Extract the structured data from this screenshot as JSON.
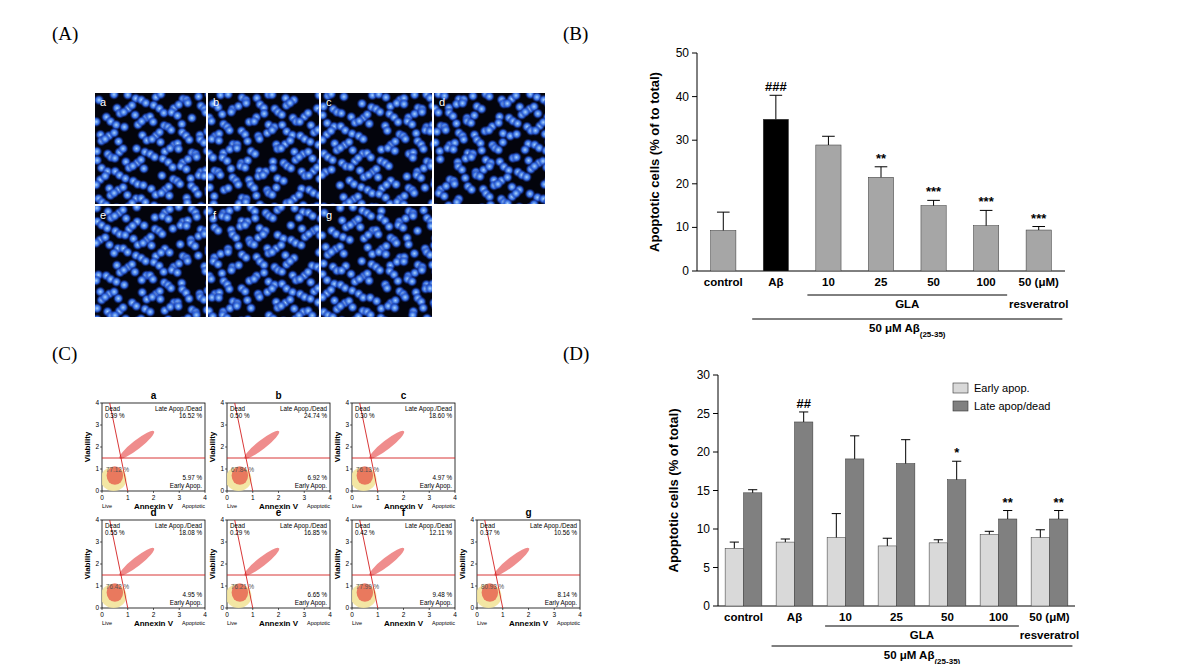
{
  "panel_labels": [
    "(A)",
    "(B)",
    "(C)",
    "(D)"
  ],
  "images": {
    "labels": [
      "a",
      "b",
      "c",
      "d",
      "e",
      "f",
      "g"
    ]
  },
  "flow_plots": {
    "x_label": "Annexin V",
    "y_label": "Viability",
    "xlim": [
      0,
      4
    ],
    "ylim": [
      0,
      4
    ],
    "xticks": [
      0,
      1,
      2,
      3,
      4
    ],
    "yticks": [
      0,
      1,
      2,
      3,
      4
    ],
    "gate_y": 1.5,
    "gate_x": [
      0.3,
      1.0
    ],
    "quadrant_names": {
      "dead": "Dead",
      "late": "Late Apop./Dead",
      "early": "Early Apop."
    },
    "bottom_labels": [
      "Live",
      "Apoptotic"
    ],
    "plots": [
      {
        "label": "a",
        "dead": "0.39 %",
        "late": "16.52 %",
        "early": "5.97 %",
        "live": "77.12 %"
      },
      {
        "label": "b",
        "dead": "0.50 %",
        "late": "24.74 %",
        "early": "6.92 %",
        "live": "67.84 %"
      },
      {
        "label": "c",
        "dead": "0.30 %",
        "late": "18.60 %",
        "early": "4.97 %",
        "live": "76.13 %"
      },
      {
        "label": "d",
        "dead": "0.55 %",
        "late": "18.08 %",
        "early": "4.95 %",
        "live": "76.42 %"
      },
      {
        "label": "e",
        "dead": "0.29 %",
        "late": "16.85 %",
        "early": "6.65 %",
        "live": "76.21 %"
      },
      {
        "label": "f",
        "dead": "0.42 %",
        "late": "12.11 %",
        "early": "9.48 %",
        "live": "77.99 %"
      },
      {
        "label": "g",
        "dead": "0.37 %",
        "late": "10.56 %",
        "early": "8.14 %",
        "live": "80.93 %"
      }
    ]
  },
  "chart_data": [
    {
      "type": "bar",
      "categories": [
        "control",
        "Aβ",
        "10",
        "25",
        "50",
        "100",
        "50 (μM)"
      ],
      "values": [
        9.3,
        34.8,
        28.9,
        21.5,
        15.0,
        10.4,
        9.4
      ],
      "errors": [
        4.2,
        5.5,
        2.0,
        2.4,
        1.2,
        3.5,
        0.8
      ],
      "colors": [
        "#a6a6a6",
        "#000000",
        "#a6a6a6",
        "#a6a6a6",
        "#a6a6a6",
        "#a6a6a6",
        "#a6a6a6"
      ],
      "annotations": [
        null,
        "###",
        null,
        "**",
        "***",
        "***",
        "***"
      ],
      "y_label": "Apoptotic cells (% of to total)",
      "ylim": [
        0,
        50
      ],
      "yticks": [
        0,
        10,
        20,
        30,
        40,
        50
      ],
      "groups": [
        {
          "text": "GLA",
          "from": 2,
          "to": 5
        },
        {
          "text": "resveratrol",
          "from": 6,
          "to": 6
        }
      ],
      "treatment": {
        "text": "50 μM Aβ",
        "subscript": "(25-35)",
        "from": 1,
        "to": 6
      }
    },
    {
      "type": "bar",
      "categories": [
        "control",
        "Aβ",
        "10",
        "25",
        "50",
        "100",
        "50 (μM)"
      ],
      "series": [
        {
          "name": "Early apop.",
          "color": "#d9d9d9",
          "values": [
            7.5,
            8.3,
            8.9,
            7.8,
            8.2,
            9.3,
            8.9
          ],
          "errors": [
            0.8,
            0.4,
            3.1,
            1.0,
            0.4,
            0.4,
            1.0
          ]
        },
        {
          "name": "Late apop/dead",
          "color": "#808080",
          "values": [
            14.7,
            23.9,
            19.1,
            18.5,
            16.4,
            11.3,
            11.3
          ],
          "errors": [
            0.4,
            1.3,
            3.0,
            3.1,
            2.4,
            1.1,
            1.1
          ],
          "annotations": [
            null,
            "##",
            null,
            null,
            "*",
            "**",
            "**"
          ]
        }
      ],
      "y_label": "Apoptotic cells (% of total)",
      "ylim": [
        0,
        30
      ],
      "yticks": [
        0,
        5,
        10,
        15,
        20,
        25,
        30
      ],
      "legend": "upper right",
      "groups": [
        {
          "text": "GLA",
          "from": 2,
          "to": 5
        },
        {
          "text": "resveratrol",
          "from": 6,
          "to": 6
        }
      ],
      "treatment": {
        "text": "50 μM Aβ",
        "subscript": "(25-35)",
        "from": 1,
        "to": 6
      }
    }
  ]
}
